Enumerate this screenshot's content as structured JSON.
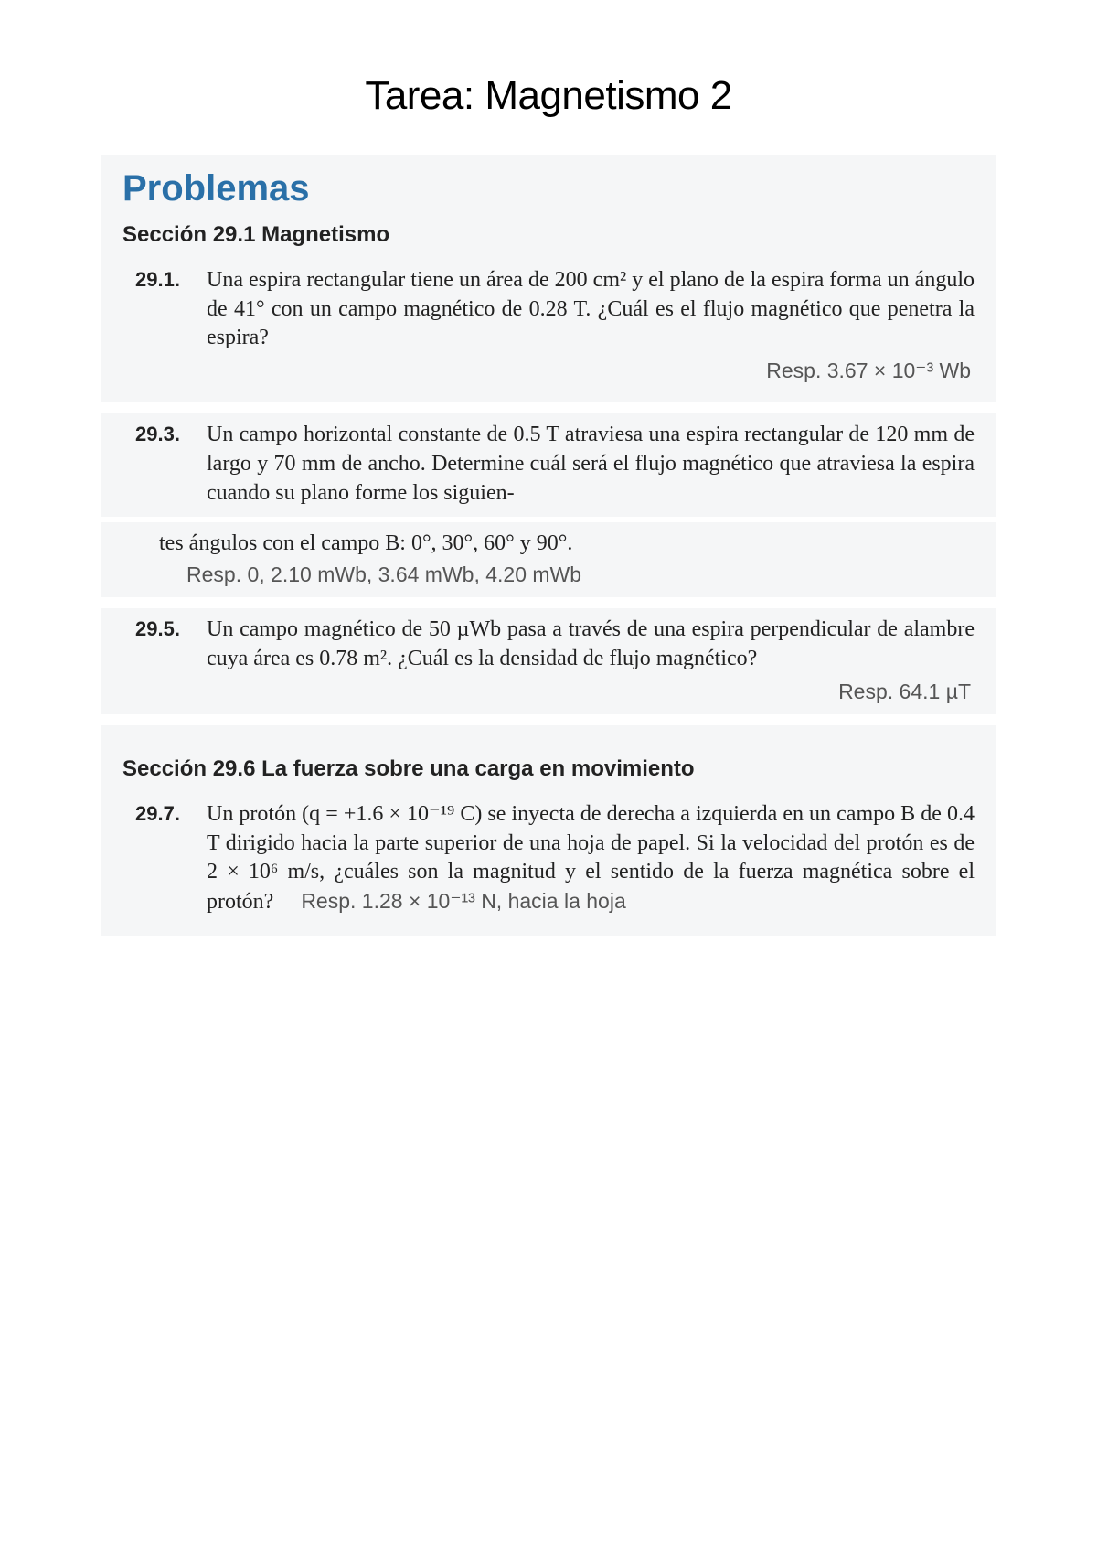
{
  "page": {
    "title": "Tarea: Magnetismo 2",
    "heading": "Problemas",
    "background_color": "#ffffff",
    "scan_background": "#f5f6f7",
    "heading_color": "#2a70a8",
    "text_color": "#222222",
    "answer_color": "#555555",
    "title_fontsize": 44,
    "heading_fontsize": 40,
    "section_fontsize": 24,
    "body_fontsize": 24,
    "answer_fontsize": 23
  },
  "section1": {
    "title": "Sección 29.1  Magnetismo"
  },
  "p291": {
    "num": "29.1.",
    "text": "Una espira rectangular tiene un área de 200 cm² y el plano de la espira forma un ángulo de 41° con un campo magnético de 0.28 T. ¿Cuál es el flujo magnético que penetra la espira?",
    "answer": "Resp. 3.67 × 10⁻³ Wb"
  },
  "p293": {
    "num": "29.3.",
    "text_a": "Un campo horizontal constante de 0.5 T atraviesa una espira rectangular de 120 mm de largo y 70 mm de ancho. Determine cuál será el flujo magnético que atraviesa la espira cuando su plano forme los siguien-",
    "text_b": "tes ángulos con el campo B: 0°, 30°, 60° y 90°.",
    "answer": "Resp. 0, 2.10 mWb, 3.64 mWb, 4.20 mWb"
  },
  "p295": {
    "num": "29.5.",
    "text": "Un campo magnético de 50 µWb pasa a través de una espira perpendicular de alambre cuya área es 0.78 m². ¿Cuál es la densidad de flujo magnético?",
    "answer": "Resp. 64.1 µT"
  },
  "section2": {
    "title": "Sección 29.6  La fuerza sobre una carga en movimiento"
  },
  "p297": {
    "num": "29.7.",
    "text": "Un protón (q = +1.6 × 10⁻¹⁹ C) se inyecta de derecha a izquierda en un campo B de 0.4 T dirigido hacia la parte superior de una hoja de papel. Si la velocidad del protón es de 2 × 10⁶ m/s, ¿cuáles son la magnitud y el sentido de la fuerza magnética sobre el protón?",
    "answer": "Resp. 1.28 × 10⁻¹³ N, hacia la hoja"
  }
}
